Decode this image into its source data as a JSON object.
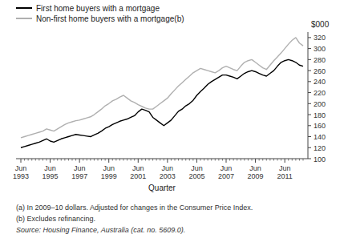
{
  "chart_data": {
    "type": "line",
    "x_label": "Quarter",
    "y_label": "$000",
    "categories": [
      "Jun 1993",
      null,
      null,
      null,
      null,
      null,
      null,
      null,
      "Jun 1995",
      null,
      null,
      null,
      null,
      null,
      null,
      null,
      "Jun 1997",
      null,
      null,
      null,
      null,
      null,
      null,
      null,
      "Jun 1999",
      null,
      null,
      null,
      null,
      null,
      null,
      null,
      "Jun 2001",
      null,
      null,
      null,
      null,
      null,
      null,
      null,
      "Jun 2003",
      null,
      null,
      null,
      null,
      null,
      null,
      null,
      "Jun 2005",
      null,
      null,
      null,
      null,
      null,
      null,
      null,
      "Jun 2007",
      null,
      null,
      null,
      null,
      null,
      null,
      null,
      "Jun 2009",
      null,
      null,
      null,
      null,
      null,
      null,
      null,
      "Jun 2011",
      null,
      null,
      null,
      null,
      null
    ],
    "series": [
      {
        "name": "First home buyers with a mortgage",
        "color": "#000000",
        "values": [
          120,
          122,
          124,
          126,
          128,
          130,
          133,
          136,
          132,
          130,
          133,
          136,
          138,
          140,
          142,
          144,
          143,
          142,
          141,
          140,
          143,
          146,
          150,
          155,
          158,
          162,
          165,
          168,
          170,
          172,
          175,
          178,
          185,
          190,
          188,
          185,
          175,
          170,
          165,
          160,
          165,
          170,
          178,
          186,
          190,
          196,
          200,
          206,
          215,
          222,
          228,
          235,
          240,
          244,
          248,
          252,
          252,
          250,
          248,
          245,
          250,
          255,
          258,
          260,
          258,
          255,
          252,
          250,
          255,
          260,
          268,
          275,
          278,
          280,
          278,
          275,
          270,
          268
        ]
      },
      {
        "name": "Non-first home buyers with a mortgage(b)",
        "color": "#b0b0b0",
        "values": [
          138,
          140,
          142,
          144,
          146,
          148,
          150,
          154,
          152,
          150,
          154,
          158,
          162,
          165,
          167,
          169,
          170,
          172,
          174,
          176,
          180,
          185,
          190,
          196,
          200,
          205,
          208,
          212,
          215,
          210,
          205,
          202,
          198,
          195,
          192,
          190,
          190,
          195,
          200,
          205,
          210,
          218,
          225,
          232,
          238,
          244,
          250,
          256,
          260,
          264,
          262,
          260,
          258,
          256,
          260,
          265,
          268,
          265,
          262,
          260,
          268,
          275,
          278,
          280,
          275,
          270,
          265,
          262,
          270,
          278,
          285,
          292,
          300,
          308,
          315,
          320,
          310,
          305
        ]
      }
    ],
    "ylim": [
      100,
      330
    ],
    "yticks": [
      100,
      120,
      140,
      160,
      180,
      200,
      220,
      240,
      260,
      280,
      300,
      320
    ],
    "grid": false,
    "legend": "top-left",
    "annotations": [
      "(a) In 2009–10 dollars. Adjusted for changes in the Consumer Price Index.",
      "(b) Excludes refinancing.",
      "Source: Housing Finance, Australia  (cat. no. 5609.0)."
    ]
  }
}
